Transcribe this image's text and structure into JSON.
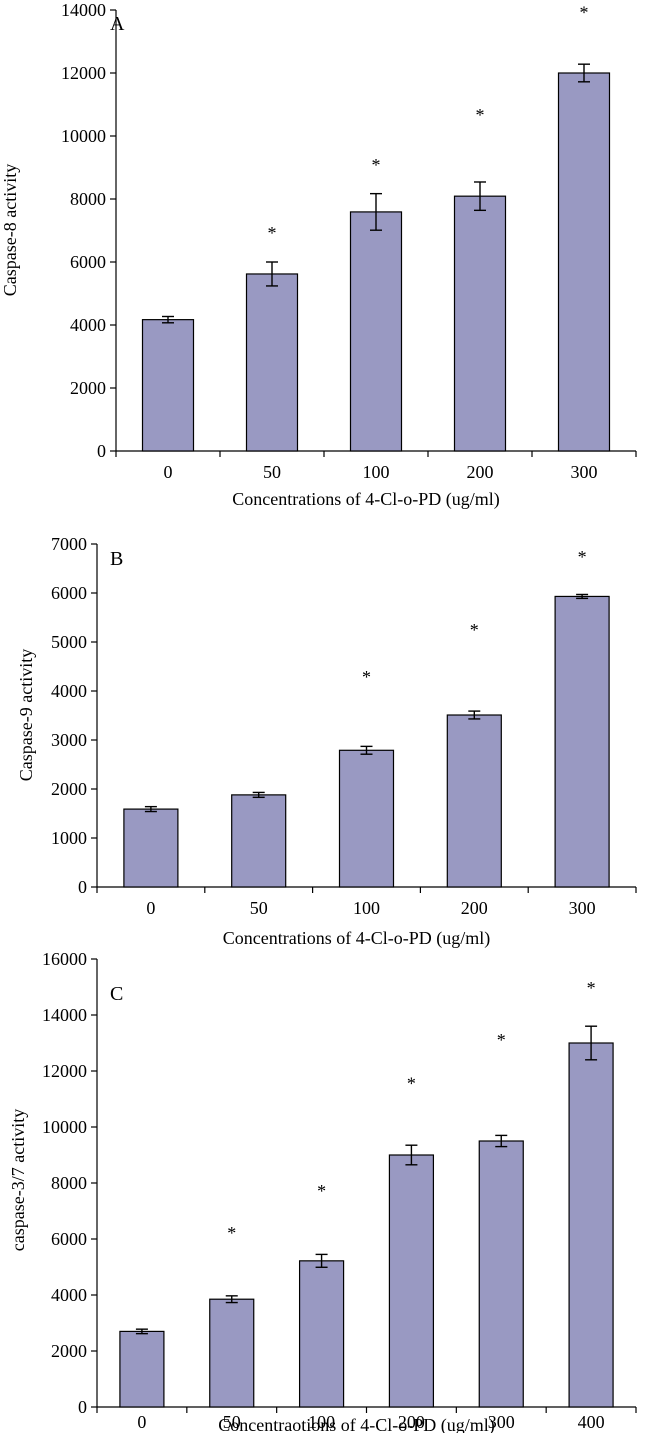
{
  "chart_data": [
    {
      "type": "bar",
      "panel_label": "A",
      "title": "",
      "xlabel": "Concentrations of 4-Cl-o-PD (ug/ml)",
      "ylabel": "Caspase-8 activity",
      "categories": [
        "0",
        "50",
        "100",
        "200",
        "300"
      ],
      "values": [
        4170,
        5620,
        7590,
        8090,
        12000
      ],
      "errors": [
        100,
        380,
        580,
        450,
        280
      ],
      "significance": [
        "",
        "*",
        "*",
        "*",
        "*"
      ],
      "star_values": [
        null,
        7050,
        9200,
        10800,
        14050
      ],
      "ylim": [
        0,
        14000
      ],
      "yticks": [
        0,
        2000,
        4000,
        6000,
        8000,
        10000,
        12000,
        14000
      ],
      "bar_color": "#9999c2",
      "grid": false,
      "legend": "none"
    },
    {
      "type": "bar",
      "panel_label": "B",
      "title": "",
      "xlabel": "Concentrations of 4-Cl-o-PD (ug/ml)",
      "ylabel": "Caspase-9 activity",
      "categories": [
        "0",
        "50",
        "100",
        "200",
        "300"
      ],
      "values": [
        1590,
        1880,
        2790,
        3510,
        5930
      ],
      "errors": [
        50,
        50,
        80,
        80,
        40
      ],
      "significance": [
        "",
        "",
        "*",
        "*",
        "*"
      ],
      "star_values": [
        null,
        null,
        4370,
        5330,
        6820
      ],
      "ylim": [
        0,
        7000
      ],
      "yticks": [
        0,
        1000,
        2000,
        3000,
        4000,
        5000,
        6000,
        7000
      ],
      "bar_color": "#9999c2",
      "grid": false,
      "legend": "none"
    },
    {
      "type": "bar",
      "panel_label": "C",
      "title": "",
      "xlabel": "Concentraotions of 4-Cl-o-PD (ug/ml)",
      "ylabel": "caspase-3/7 activity",
      "categories": [
        "0",
        "50",
        "100",
        "200",
        "300",
        "400"
      ],
      "values": [
        2700,
        3850,
        5220,
        9000,
        9500,
        13000
      ],
      "errors": [
        80,
        120,
        230,
        350,
        200,
        600
      ],
      "significance": [
        "",
        "*",
        "*",
        "*",
        "*",
        "*"
      ],
      "star_values": [
        null,
        6350,
        7850,
        11700,
        13250,
        15100
      ],
      "ylim": [
        0,
        16000
      ],
      "yticks": [
        0,
        2000,
        4000,
        6000,
        8000,
        10000,
        12000,
        14000,
        16000
      ],
      "bar_color": "#9999c2",
      "grid": false,
      "legend": "none"
    }
  ]
}
